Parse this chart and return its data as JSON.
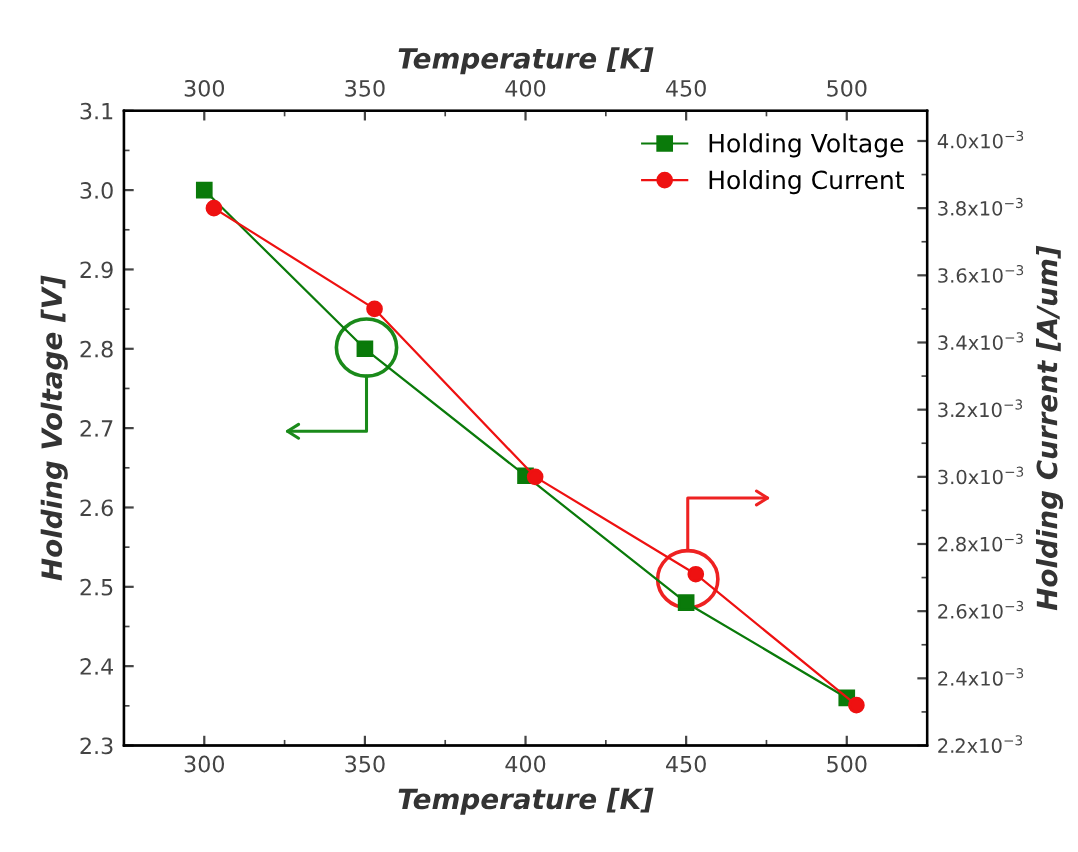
{
  "chart_data": {
    "type": "line",
    "xlabel": "Temperature [K]",
    "x2label": "Temperature [K]",
    "ylabel": "Holding Voltage [V]",
    "y2label": "Holding Current [A/um]",
    "xlim": [
      275,
      525
    ],
    "xticks": [
      300,
      350,
      400,
      450,
      500
    ],
    "x2lim": [
      275,
      525
    ],
    "x2ticks": [
      300,
      350,
      400,
      450,
      500
    ],
    "ylim": [
      2.3,
      3.1
    ],
    "yticks": [
      {
        "value": 2.3,
        "label": "2.3"
      },
      {
        "value": 2.4,
        "label": "2.4"
      },
      {
        "value": 2.5,
        "label": "2.5"
      },
      {
        "value": 2.6,
        "label": "2.6"
      },
      {
        "value": 2.7,
        "label": "2.7"
      },
      {
        "value": 2.8,
        "label": "2.8"
      },
      {
        "value": 2.9,
        "label": "2.9"
      },
      {
        "value": 3.0,
        "label": "3.0"
      },
      {
        "value": 3.1,
        "label": "3.1"
      }
    ],
    "y2lim": [
      0.0022,
      0.00409
    ],
    "y2ticks": [
      {
        "value": 0.0022,
        "label": "2.2x10$^{−3}$"
      },
      {
        "value": 0.0024,
        "label": "2.4x10$^{−3}$"
      },
      {
        "value": 0.0026,
        "label": "2.6x10$^{−3}$"
      },
      {
        "value": 0.0028,
        "label": "2.8x10$^{−3}$"
      },
      {
        "value": 0.003,
        "label": "3.0x10$^{−3}$"
      },
      {
        "value": 0.0032,
        "label": "3.2x10$^{−3}$"
      },
      {
        "value": 0.0034,
        "label": "3.4x10$^{−3}$"
      },
      {
        "value": 0.0036,
        "label": "3.6x10$^{−3}$"
      },
      {
        "value": 0.0038,
        "label": "3.8x10$^{−3}$"
      },
      {
        "value": 0.004,
        "label": "4.0x10$^{−3}$"
      }
    ],
    "series": [
      {
        "name": "Holding Voltage",
        "color": "#0a7a0a",
        "marker": "square",
        "x": [
          300,
          350,
          400,
          450,
          500
        ],
        "values": [
          3.0,
          2.8,
          2.64,
          2.48,
          2.36
        ]
      },
      {
        "name": "Holding Current",
        "color": "#ee1111",
        "marker": "circle",
        "axis": "y2",
        "x": [
          303,
          353,
          403,
          453,
          503
        ],
        "values": [
          0.0038,
          0.0035,
          0.003,
          0.00271,
          0.00232
        ]
      }
    ],
    "legend": "top right",
    "grid": false,
    "line_style": "solid"
  }
}
